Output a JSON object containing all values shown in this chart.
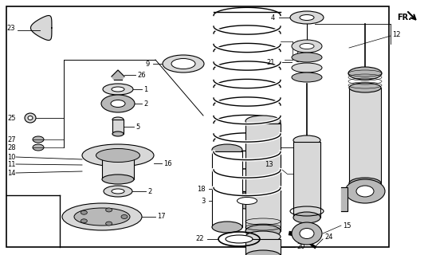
{
  "bg_color": "#ffffff",
  "line_color": "#000000",
  "gray_light": "#d8d8d8",
  "gray_mid": "#b8b8b8",
  "gray_dark": "#909090",
  "fr_label": "FR.",
  "figsize": [
    5.37,
    3.2
  ],
  "dpi": 100
}
